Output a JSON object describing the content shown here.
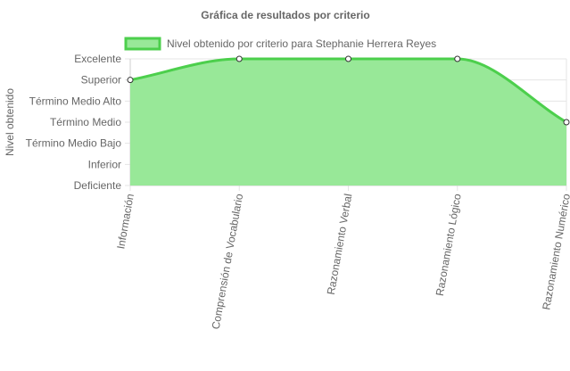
{
  "chart_data": {
    "type": "area",
    "title": "Gráfica de resultados por criterio",
    "ylabel": "Nivel obtenido",
    "xlabel": "",
    "categories": [
      "Información",
      "Comprensión de Vocabulario",
      "Razonamiento Verbal",
      "Razonamiento Lógico",
      "Razonamiento Numérico"
    ],
    "y_levels": [
      "Deficiente",
      "Inferior",
      "Término Medio Bajo",
      "Término Medio",
      "Término Medio Alto",
      "Superior",
      "Excelente"
    ],
    "series": [
      {
        "name": "Nivel obtenido por criterio para Stephanie Herrera Reyes",
        "values": [
          5,
          6,
          6,
          6,
          3
        ]
      }
    ],
    "ylim": [
      0,
      6
    ],
    "grid": true,
    "legend_position": "top",
    "colors": {
      "fill": "#98e898",
      "line": "#4ccf4c",
      "point_fill": "#ffffff",
      "point_stroke": "#333333",
      "grid": "#e5e5e5",
      "text": "#666666",
      "title": "#666666"
    }
  }
}
